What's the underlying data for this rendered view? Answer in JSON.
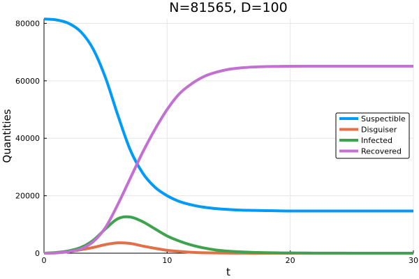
{
  "chart_data": {
    "type": "line",
    "title": "N=81565, D=100",
    "xlabel": "t",
    "ylabel": "Quantities",
    "xlim": [
      0,
      30
    ],
    "ylim": [
      0,
      81565
    ],
    "xticks": [
      0,
      10,
      20,
      30
    ],
    "yticks": [
      0,
      20000,
      40000,
      60000,
      80000
    ],
    "grid": true,
    "legend_position": "right",
    "x": [
      0,
      1,
      2,
      3,
      4,
      5,
      6,
      7,
      8,
      9,
      10,
      11,
      12,
      13,
      14,
      15,
      16,
      17,
      18,
      19,
      20,
      22,
      24,
      26,
      28,
      30
    ],
    "series": [
      {
        "name": "Suspectible",
        "color": "#009af9",
        "values": [
          81500,
          81200,
          80000,
          77000,
          71000,
          61000,
          48000,
          36000,
          28000,
          23000,
          20000,
          18000,
          16800,
          16000,
          15500,
          15200,
          15000,
          14900,
          14800,
          14750,
          14700,
          14700,
          14700,
          14700,
          14700,
          14700
        ]
      },
      {
        "name": "Disguiser",
        "color": "#e26f46",
        "values": [
          0,
          150,
          500,
          1200,
          2000,
          3000,
          3600,
          3400,
          2500,
          1700,
          1000,
          600,
          300,
          150,
          80,
          40,
          20,
          10,
          5,
          0,
          0,
          0,
          0,
          0,
          0,
          0
        ]
      },
      {
        "name": "Infected",
        "color": "#3da44d",
        "values": [
          0,
          250,
          800,
          2000,
          4500,
          8500,
          12000,
          12600,
          11000,
          8500,
          6000,
          4200,
          2800,
          1800,
          1100,
          700,
          450,
          280,
          180,
          120,
          80,
          40,
          20,
          10,
          5,
          0
        ]
      },
      {
        "name": "Recovered",
        "color": "#c271d2",
        "values": [
          0,
          100,
          500,
          1500,
          4000,
          9000,
          17000,
          26000,
          35000,
          43000,
          50000,
          55500,
          59000,
          61500,
          63000,
          64000,
          64500,
          64800,
          64950,
          65000,
          65050,
          65100,
          65100,
          65100,
          65100,
          65100
        ]
      }
    ]
  }
}
